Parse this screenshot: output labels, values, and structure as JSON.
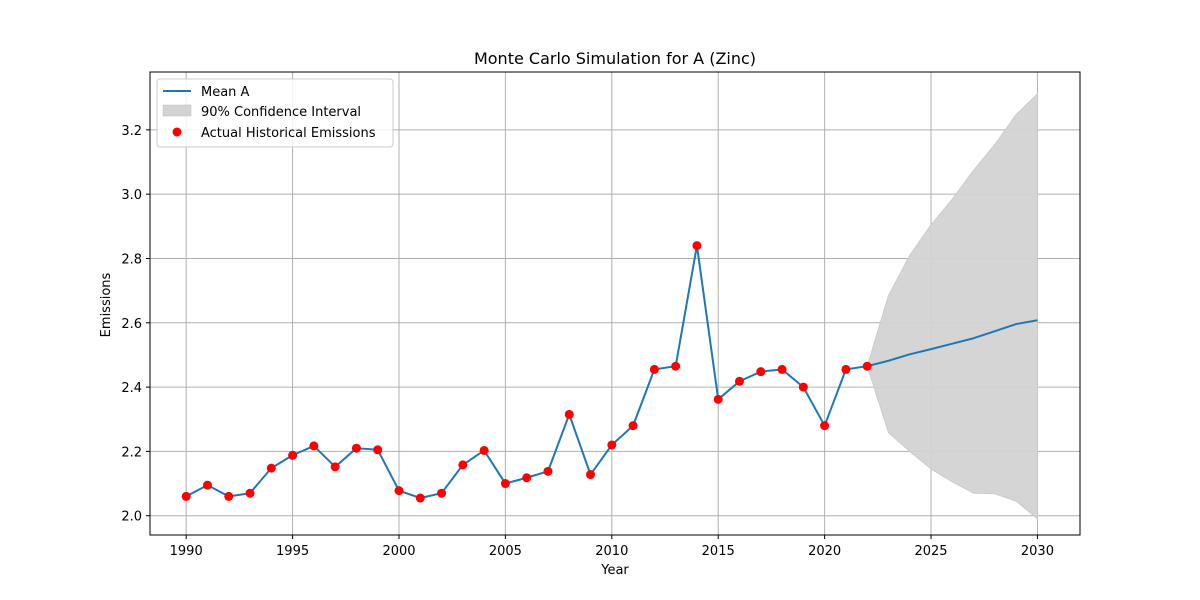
{
  "chart_data": {
    "type": "line",
    "title": "Monte Carlo Simulation for A (Zinc)",
    "xlabel": "Year",
    "ylabel": "Emissions",
    "xlim": [
      1988.3,
      2032
    ],
    "ylim": [
      1.94,
      3.38
    ],
    "xticks": [
      1990,
      1995,
      2000,
      2005,
      2010,
      2015,
      2020,
      2025,
      2030
    ],
    "yticks": [
      2.0,
      2.2,
      2.4,
      2.6,
      2.8,
      3.0,
      3.2
    ],
    "grid": true,
    "legend_position": "top-left",
    "legend": {
      "mean_label": "Mean A",
      "ci_label": "90% Confidence Interval",
      "hist_label": "Actual Historical Emissions"
    },
    "colors": {
      "mean": "#1f77b4",
      "ci": "#d3d3d3",
      "hist": "#ff0000"
    },
    "mean_series": {
      "name": "Mean A",
      "x": [
        1990,
        1991,
        1992,
        1993,
        1994,
        1995,
        1996,
        1997,
        1998,
        1999,
        2000,
        2001,
        2002,
        2003,
        2004,
        2005,
        2006,
        2007,
        2008,
        2009,
        2010,
        2011,
        2012,
        2013,
        2014,
        2015,
        2016,
        2017,
        2018,
        2019,
        2020,
        2021,
        2022,
        2023,
        2024,
        2025,
        2026,
        2027,
        2028,
        2029,
        2030
      ],
      "y": [
        2.06,
        2.095,
        2.06,
        2.07,
        2.148,
        2.188,
        2.217,
        2.152,
        2.21,
        2.205,
        2.078,
        2.055,
        2.07,
        2.158,
        2.203,
        2.1,
        2.118,
        2.138,
        2.315,
        2.128,
        2.22,
        2.28,
        2.455,
        2.465,
        2.84,
        2.362,
        2.418,
        2.448,
        2.455,
        2.4,
        2.28,
        2.455,
        2.465,
        2.482,
        2.502,
        2.518,
        2.535,
        2.552,
        2.574,
        2.596,
        2.608
      ]
    },
    "confidence_interval": {
      "name": "90% Confidence Interval",
      "x": [
        2022,
        2023,
        2024,
        2025,
        2026,
        2027,
        2028,
        2029,
        2030
      ],
      "lower": [
        2.465,
        2.258,
        2.2,
        2.145,
        2.105,
        2.07,
        2.068,
        2.045,
        1.99
      ],
      "upper": [
        2.465,
        2.685,
        2.81,
        2.905,
        2.985,
        3.075,
        3.155,
        3.248,
        3.312
      ]
    },
    "historical_points": {
      "name": "Actual Historical Emissions",
      "x": [
        1990,
        1991,
        1992,
        1993,
        1994,
        1995,
        1996,
        1997,
        1998,
        1999,
        2000,
        2001,
        2002,
        2003,
        2004,
        2005,
        2006,
        2007,
        2008,
        2009,
        2010,
        2011,
        2012,
        2013,
        2014,
        2015,
        2016,
        2017,
        2018,
        2019,
        2020,
        2021,
        2022
      ],
      "y": [
        2.06,
        2.095,
        2.06,
        2.07,
        2.148,
        2.188,
        2.217,
        2.152,
        2.21,
        2.205,
        2.078,
        2.055,
        2.07,
        2.158,
        2.203,
        2.1,
        2.118,
        2.138,
        2.315,
        2.128,
        2.22,
        2.28,
        2.455,
        2.465,
        2.84,
        2.362,
        2.418,
        2.448,
        2.455,
        2.4,
        2.28,
        2.455,
        2.465
      ]
    }
  }
}
